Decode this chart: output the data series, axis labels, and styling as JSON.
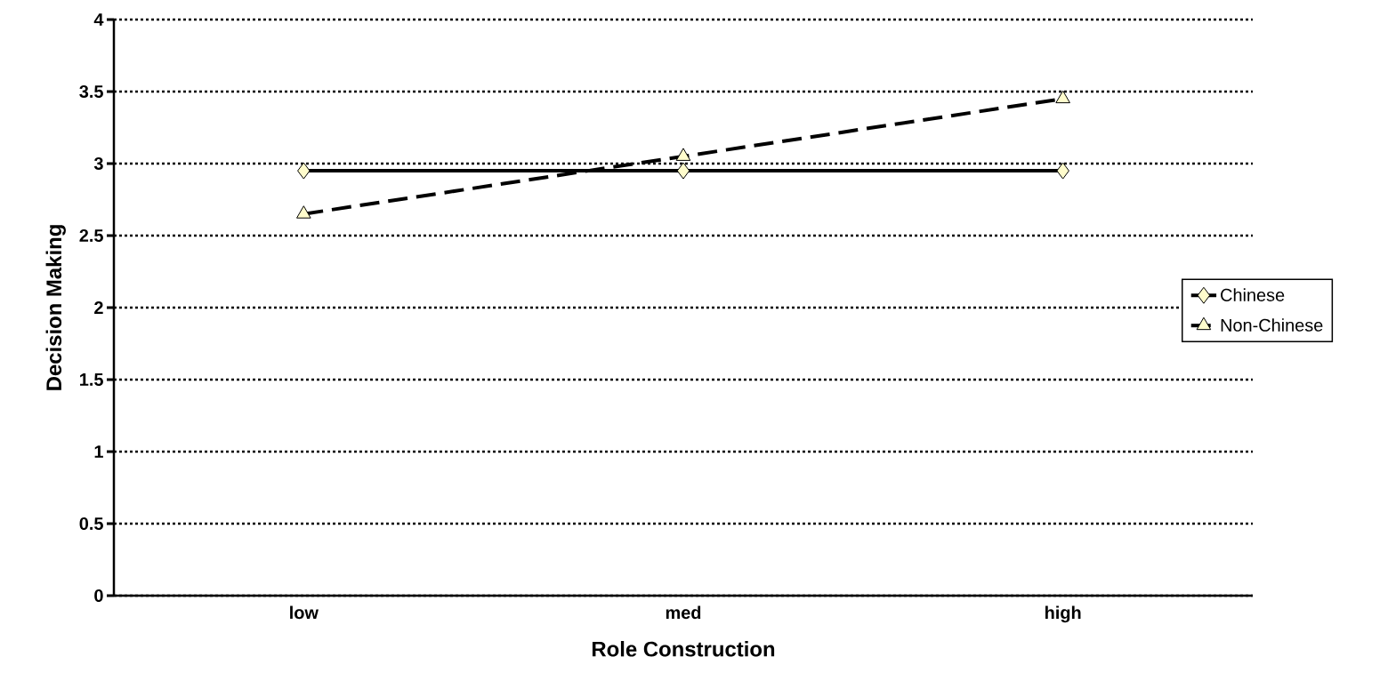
{
  "chart_data": {
    "type": "line",
    "xlabel": "Role Construction",
    "ylabel": "Decision Making",
    "categories": [
      "low",
      "med",
      "high"
    ],
    "series": [
      {
        "name": "Chinese",
        "color": "#000000",
        "marker": "diamond",
        "line_style": "solid",
        "values": [
          2.95,
          2.95,
          2.95
        ]
      },
      {
        "name": "Non-Chinese",
        "color": "#000000",
        "marker": "triangle",
        "line_style": "dashed",
        "values": [
          2.65,
          3.05,
          3.45
        ]
      }
    ],
    "ylim": [
      0,
      4
    ],
    "yticks": [
      0,
      0.5,
      1,
      1.5,
      2,
      2.5,
      3,
      3.5,
      4
    ],
    "grid": "y",
    "legend": "right"
  }
}
